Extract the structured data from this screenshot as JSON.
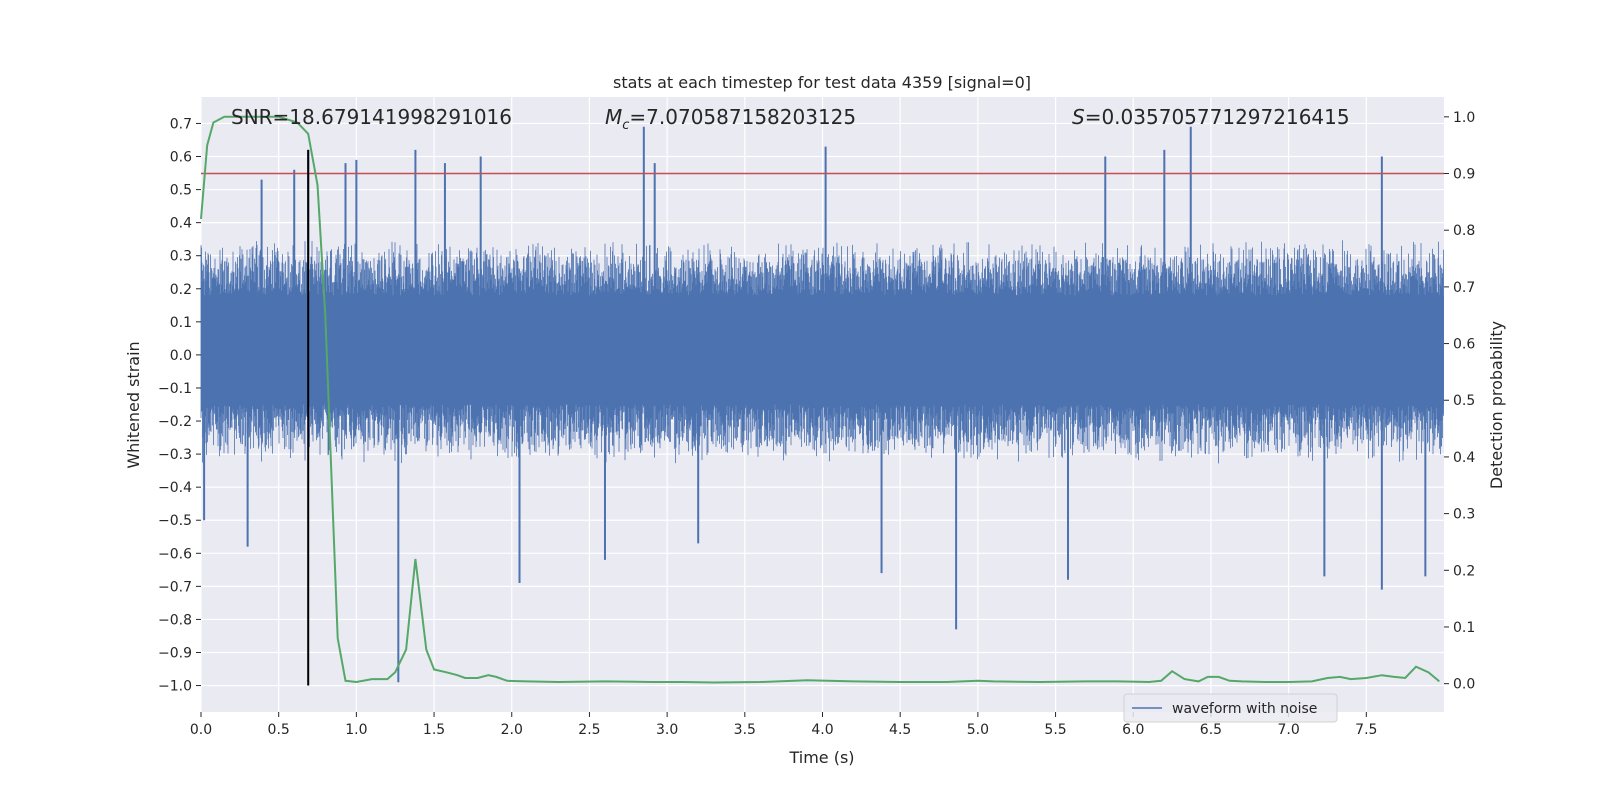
{
  "chart_data": {
    "type": "line",
    "title": "stats at each timestep for test data 4359 [signal=0]",
    "xlabel": "Time (s)",
    "ylabel_left": "Whitened strain",
    "ylabel_right": "Detection probability",
    "xlim": [
      0,
      8
    ],
    "ylim_left": [
      -1.08,
      0.78
    ],
    "ylim_right": [
      -0.05,
      1.035
    ],
    "x_ticks": [
      0.0,
      0.5,
      1.0,
      1.5,
      2.0,
      2.5,
      3.0,
      3.5,
      4.0,
      4.5,
      5.0,
      5.5,
      6.0,
      6.5,
      7.0,
      7.5
    ],
    "x_tick_labels": [
      "0.0",
      "0.5",
      "1.0",
      "1.5",
      "2.0",
      "2.5",
      "3.0",
      "3.5",
      "4.0",
      "4.5",
      "5.0",
      "5.5",
      "6.0",
      "6.5",
      "7.0",
      "7.5"
    ],
    "y_left_ticks": [
      0.7,
      0.6,
      0.5,
      0.4,
      0.3,
      0.2,
      0.1,
      0.0,
      -0.1,
      -0.2,
      -0.3,
      -0.4,
      -0.5,
      -0.6,
      -0.7,
      -0.8,
      -0.9,
      -1.0
    ],
    "y_left_tick_labels": [
      "0.7",
      "0.6",
      "0.5",
      "0.4",
      "0.3",
      "0.2",
      "0.1",
      "0.0",
      "−0.1",
      "−0.2",
      "−0.3",
      "−0.4",
      "−0.5",
      "−0.6",
      "−0.7",
      "−0.8",
      "−0.9",
      "−1.0"
    ],
    "y_right_ticks": [
      1.0,
      0.9,
      0.8,
      0.7,
      0.6,
      0.5,
      0.4,
      0.3,
      0.2,
      0.1,
      0.0
    ],
    "y_right_tick_labels": [
      "1.0",
      "0.9",
      "0.8",
      "0.7",
      "0.6",
      "0.5",
      "0.4",
      "0.3",
      "0.2",
      "0.1",
      "0.0"
    ],
    "grid": true,
    "stats": {
      "snr": "SNR=18.679141998291016",
      "mc_symbol": "M",
      "mc_subscript": "c",
      "mc_value": "=7.070587158203125",
      "s_symbol": "S",
      "s_value": "=0.035705771297216415"
    },
    "threshold": {
      "axis": "right",
      "value": 0.9,
      "color": "#c44e52"
    },
    "marker_line": {
      "x": 0.69,
      "y_from": -1.0,
      "y_to": 0.62,
      "color": "#000000"
    },
    "series": [
      {
        "name": "waveform with noise",
        "axis": "left",
        "color": "#4c72b0",
        "style": "dense-noise",
        "envelope": {
          "band_upper": 0.18,
          "band_lower": -0.15,
          "typical_max": 0.35,
          "typical_min": -0.33
        },
        "spikes": [
          {
            "x": 0.69,
            "y": 0.62
          },
          {
            "x": 0.39,
            "y": 0.53
          },
          {
            "x": 0.6,
            "y": 0.56
          },
          {
            "x": 0.93,
            "y": 0.58
          },
          {
            "x": 1.0,
            "y": 0.59
          },
          {
            "x": 1.38,
            "y": 0.62
          },
          {
            "x": 1.57,
            "y": 0.58
          },
          {
            "x": 1.8,
            "y": 0.6
          },
          {
            "x": 2.85,
            "y": 0.69
          },
          {
            "x": 2.92,
            "y": 0.58
          },
          {
            "x": 4.02,
            "y": 0.63
          },
          {
            "x": 5.82,
            "y": 0.6
          },
          {
            "x": 6.2,
            "y": 0.62
          },
          {
            "x": 6.37,
            "y": 0.69
          },
          {
            "x": 7.6,
            "y": 0.6
          },
          {
            "x": 0.02,
            "y": -0.5
          },
          {
            "x": 0.3,
            "y": -0.58
          },
          {
            "x": 1.27,
            "y": -0.99
          },
          {
            "x": 2.05,
            "y": -0.69
          },
          {
            "x": 2.6,
            "y": -0.62
          },
          {
            "x": 3.2,
            "y": -0.57
          },
          {
            "x": 4.38,
            "y": -0.66
          },
          {
            "x": 4.86,
            "y": -0.83
          },
          {
            "x": 5.58,
            "y": -0.68
          },
          {
            "x": 7.23,
            "y": -0.67
          },
          {
            "x": 7.6,
            "y": -0.71
          },
          {
            "x": 7.88,
            "y": -0.67
          }
        ]
      },
      {
        "axis": "right",
        "color": "#55a868",
        "style": "line",
        "x": [
          0.0,
          0.04,
          0.08,
          0.15,
          0.3,
          0.5,
          0.62,
          0.69,
          0.75,
          0.8,
          0.88,
          0.93,
          1.0,
          1.1,
          1.2,
          1.25,
          1.32,
          1.38,
          1.45,
          1.5,
          1.58,
          1.65,
          1.7,
          1.78,
          1.85,
          1.9,
          1.97,
          2.1,
          2.3,
          2.6,
          2.9,
          3.1,
          3.3,
          3.6,
          3.9,
          4.2,
          4.5,
          4.8,
          5.0,
          5.1,
          5.4,
          5.7,
          5.9,
          6.1,
          6.18,
          6.25,
          6.33,
          6.42,
          6.48,
          6.55,
          6.62,
          6.7,
          6.85,
          7.0,
          7.15,
          7.25,
          7.33,
          7.4,
          7.5,
          7.6,
          7.68,
          7.75,
          7.82,
          7.9,
          7.97
        ],
        "y": [
          0.82,
          0.95,
          0.99,
          1.0,
          1.0,
          1.0,
          0.99,
          0.97,
          0.88,
          0.65,
          0.08,
          0.005,
          0.003,
          0.008,
          0.008,
          0.02,
          0.06,
          0.22,
          0.06,
          0.025,
          0.02,
          0.015,
          0.01,
          0.01,
          0.015,
          0.012,
          0.005,
          0.004,
          0.003,
          0.004,
          0.003,
          0.003,
          0.002,
          0.003,
          0.006,
          0.004,
          0.003,
          0.003,
          0.005,
          0.004,
          0.003,
          0.004,
          0.004,
          0.003,
          0.005,
          0.022,
          0.008,
          0.004,
          0.012,
          0.012,
          0.005,
          0.004,
          0.003,
          0.003,
          0.004,
          0.01,
          0.012,
          0.008,
          0.01,
          0.015,
          0.012,
          0.01,
          0.03,
          0.02,
          0.004
        ]
      }
    ],
    "legend": {
      "entries": [
        "waveform with noise"
      ],
      "placement": "lower-right"
    }
  }
}
